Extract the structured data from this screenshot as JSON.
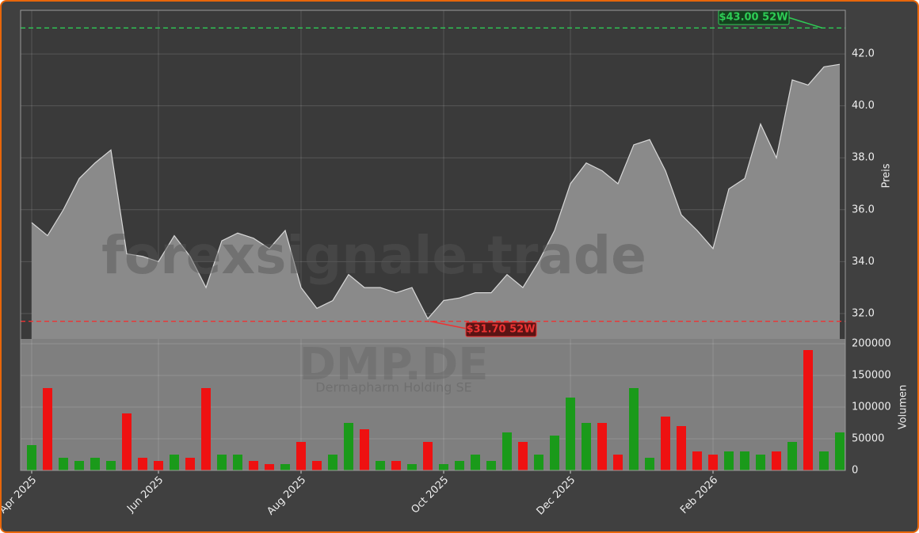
{
  "chart_data": {
    "type": "stock",
    "watermark": "forexsignale.trade",
    "ticker": "DMP.DE",
    "company": "Dermapharm Holding SE",
    "categories": [
      "Apr 2025",
      null,
      null,
      null,
      null,
      null,
      null,
      null,
      "Jun 2025",
      null,
      null,
      null,
      null,
      null,
      null,
      null,
      null,
      "Aug 2025",
      null,
      null,
      null,
      null,
      null,
      null,
      null,
      null,
      "Oct 2025",
      null,
      null,
      null,
      null,
      null,
      null,
      null,
      "Dec 2025",
      null,
      null,
      null,
      null,
      null,
      null,
      null,
      null,
      "Feb 2026",
      null,
      null,
      null,
      null,
      null,
      null,
      null,
      null
    ],
    "price": {
      "name": "Preis",
      "color": "#8a8a8a",
      "line_color": "#d8d8d8",
      "values": [
        35.5,
        35.0,
        36.0,
        37.2,
        37.8,
        38.3,
        34.3,
        34.2,
        34.0,
        35.0,
        34.2,
        33.0,
        34.8,
        35.1,
        34.9,
        34.5,
        35.2,
        33.0,
        32.2,
        32.5,
        33.5,
        33.0,
        33.0,
        32.8,
        33.0,
        31.8,
        32.5,
        32.6,
        32.8,
        32.8,
        33.5,
        33.0,
        34.0,
        35.2,
        37.0,
        37.8,
        37.5,
        37.0,
        38.5,
        38.7,
        37.5,
        35.8,
        35.2,
        34.5,
        36.8,
        37.2,
        39.3,
        38.0,
        41.0,
        40.8,
        41.5,
        41.6
      ],
      "ylim": [
        31.02,
        43.68
      ],
      "yticks": [
        {
          "value": 32,
          "label": "32.0"
        },
        {
          "value": 34,
          "label": "34.0"
        },
        {
          "value": 36,
          "label": "36.0"
        },
        {
          "value": 38,
          "label": "38.0"
        },
        {
          "value": 40,
          "label": "40.0"
        },
        {
          "value": 42,
          "label": "42.0"
        }
      ]
    },
    "volume": {
      "name": "Volumen",
      "up_color": "#1a9a1a",
      "down_color": "#ee1111",
      "values": [
        40000,
        130000,
        20000,
        15000,
        20000,
        15000,
        90000,
        20000,
        15000,
        25000,
        20000,
        130000,
        25000,
        25000,
        15000,
        10000,
        10000,
        45000,
        15000,
        25000,
        75000,
        65000,
        15000,
        15000,
        10000,
        45000,
        10000,
        15000,
        25000,
        15000,
        60000,
        45000,
        25000,
        55000,
        115000,
        75000,
        75000,
        25000,
        130000,
        20000,
        85000,
        70000,
        30000,
        25000,
        30000,
        30000,
        25000,
        30000,
        45000,
        190000,
        30000,
        60000
      ],
      "ylim": [
        0,
        207500
      ],
      "yticks": [
        0,
        50000,
        100000,
        150000,
        200000
      ]
    },
    "high": {
      "value": 43.0,
      "label": "$43.00 52W",
      "color": "#2ecc55"
    },
    "low": {
      "value": 31.7,
      "label": "$31.70 52W",
      "color": "#ee3333"
    },
    "grid": true
  }
}
